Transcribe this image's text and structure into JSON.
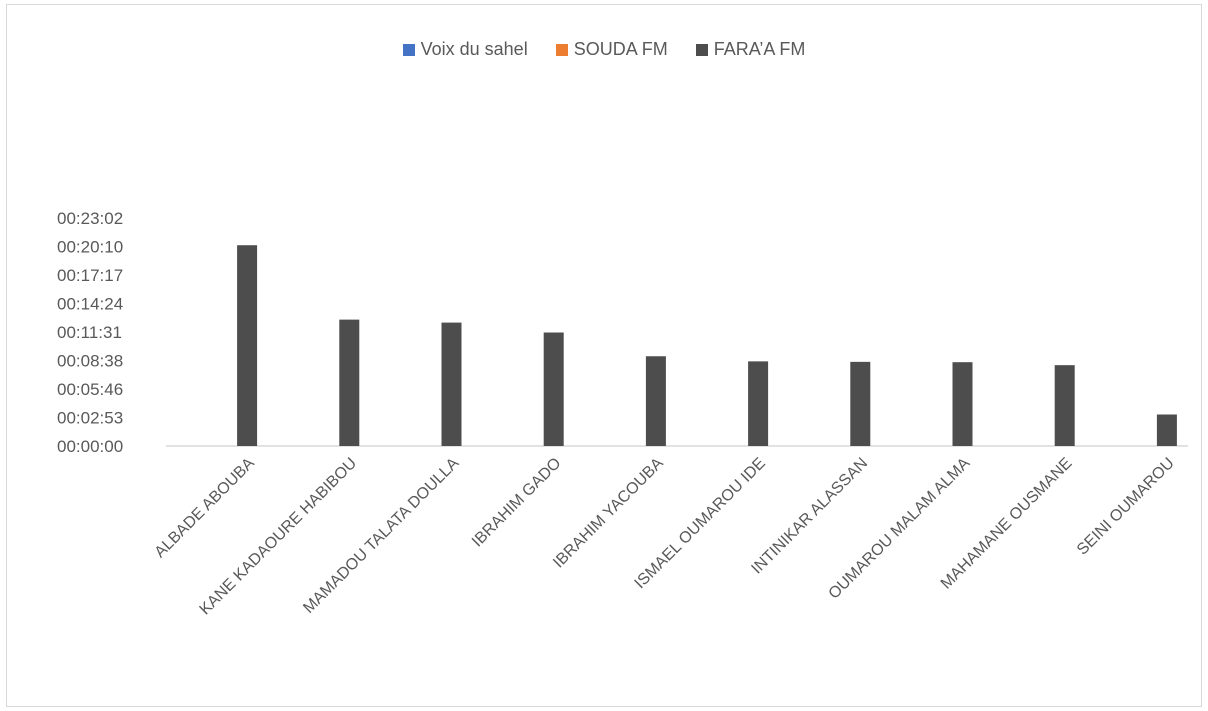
{
  "chart_data": {
    "type": "bar",
    "title": "",
    "xlabel": "",
    "ylabel": "",
    "categories": [
      "ALBADE ABOUBA",
      "KANE KADAOURE HABIBOU",
      "MAMADOU TALATA DOULLA",
      "IBRAHIM GADO",
      "IBRAHIM YACOUBA",
      "ISMAEL OUMAROU IDE",
      "INTINIKAR ALASSAN",
      "OUMAROU MALAM ALMA",
      "MAHAMANE OUSMANE",
      "SEINI OUMAROU"
    ],
    "series": [
      {
        "name": "Voix du sahel",
        "color": "#4472c4",
        "values": [
          0,
          0,
          0,
          0,
          0,
          0,
          0,
          0,
          0,
          0
        ]
      },
      {
        "name": "SOUDA FM",
        "color": "#ed7d31",
        "values": [
          0,
          0,
          0,
          0,
          0,
          0,
          0,
          0,
          0,
          0
        ]
      },
      {
        "name": "FARA’A FM",
        "color": "#4d4d4d",
        "values": [
          "00:20:17",
          "00:12:46",
          "00:12:28",
          "00:11:28",
          "00:09:04",
          "00:08:33",
          "00:08:30",
          "00:08:28",
          "00:08:10",
          "00:03:11"
        ]
      }
    ],
    "yticks": [
      "00:00:00",
      "00:02:53",
      "00:05:46",
      "00:08:38",
      "00:11:31",
      "00:14:24",
      "00:17:17",
      "00:20:10",
      "00:23:02"
    ],
    "ylim": [
      "00:00:00",
      "00:23:02"
    ],
    "legend_position": "top",
    "grid": false
  }
}
